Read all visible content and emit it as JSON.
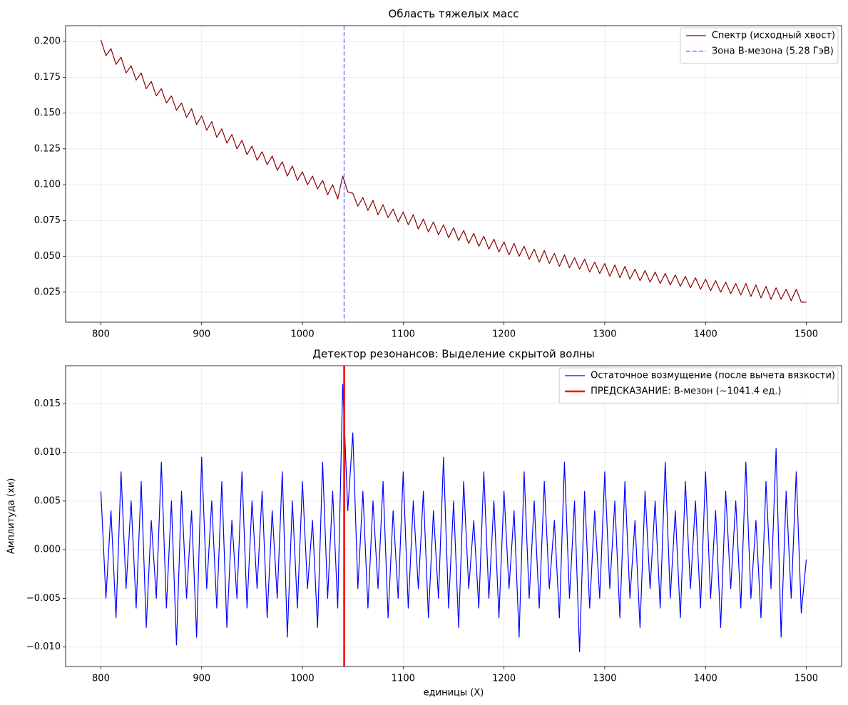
{
  "chart_data": [
    {
      "type": "line",
      "title": "Область тяжелых масс",
      "x": [
        800,
        805,
        810,
        815,
        820,
        825,
        830,
        835,
        840,
        845,
        850,
        855,
        860,
        865,
        870,
        875,
        880,
        885,
        890,
        895,
        900,
        905,
        910,
        915,
        920,
        925,
        930,
        935,
        940,
        945,
        950,
        955,
        960,
        965,
        970,
        975,
        980,
        985,
        990,
        995,
        1000,
        1005,
        1010,
        1015,
        1020,
        1025,
        1030,
        1035,
        1040,
        1045,
        1050,
        1055,
        1060,
        1065,
        1070,
        1075,
        1080,
        1085,
        1090,
        1095,
        1100,
        1105,
        1110,
        1115,
        1120,
        1125,
        1130,
        1135,
        1140,
        1145,
        1150,
        1155,
        1160,
        1165,
        1170,
        1175,
        1180,
        1185,
        1190,
        1195,
        1200,
        1205,
        1210,
        1215,
        1220,
        1225,
        1230,
        1235,
        1240,
        1245,
        1250,
        1255,
        1260,
        1265,
        1270,
        1275,
        1280,
        1285,
        1290,
        1295,
        1300,
        1305,
        1310,
        1315,
        1320,
        1325,
        1330,
        1335,
        1340,
        1345,
        1350,
        1355,
        1360,
        1365,
        1370,
        1375,
        1380,
        1385,
        1390,
        1395,
        1400,
        1405,
        1410,
        1415,
        1420,
        1425,
        1430,
        1435,
        1440,
        1445,
        1450,
        1455,
        1460,
        1465,
        1470,
        1475,
        1480,
        1485,
        1490,
        1495,
        1500
      ],
      "series": [
        {
          "name": "Спектр (исходный хвост)",
          "color": "#8b0000",
          "values": [
            0.201,
            0.19,
            0.195,
            0.184,
            0.189,
            0.178,
            0.183,
            0.173,
            0.178,
            0.167,
            0.172,
            0.162,
            0.167,
            0.157,
            0.162,
            0.152,
            0.157,
            0.147,
            0.153,
            0.142,
            0.148,
            0.138,
            0.144,
            0.133,
            0.139,
            0.129,
            0.135,
            0.125,
            0.131,
            0.121,
            0.127,
            0.117,
            0.123,
            0.114,
            0.12,
            0.11,
            0.116,
            0.106,
            0.113,
            0.103,
            0.109,
            0.1,
            0.106,
            0.097,
            0.103,
            0.093,
            0.1,
            0.09,
            0.106,
            0.095,
            0.094,
            0.085,
            0.091,
            0.082,
            0.089,
            0.079,
            0.086,
            0.077,
            0.083,
            0.074,
            0.081,
            0.072,
            0.079,
            0.069,
            0.076,
            0.067,
            0.074,
            0.065,
            0.072,
            0.063,
            0.07,
            0.061,
            0.068,
            0.059,
            0.066,
            0.057,
            0.064,
            0.055,
            0.062,
            0.053,
            0.06,
            0.051,
            0.059,
            0.05,
            0.057,
            0.048,
            0.055,
            0.046,
            0.054,
            0.045,
            0.052,
            0.043,
            0.051,
            0.042,
            0.049,
            0.041,
            0.048,
            0.039,
            0.046,
            0.038,
            0.045,
            0.036,
            0.044,
            0.035,
            0.043,
            0.034,
            0.041,
            0.033,
            0.04,
            0.032,
            0.039,
            0.031,
            0.038,
            0.03,
            0.037,
            0.029,
            0.036,
            0.028,
            0.035,
            0.027,
            0.034,
            0.026,
            0.033,
            0.025,
            0.032,
            0.024,
            0.031,
            0.023,
            0.031,
            0.022,
            0.03,
            0.021,
            0.029,
            0.02,
            0.028,
            0.02,
            0.027,
            0.019,
            0.027,
            0.018,
            0.018
          ]
        }
      ],
      "vline": {
        "x": 1041.4,
        "name": "Зона B-мезона (5.28 ГэВ)",
        "color": "#0000ff",
        "opacity": 0.5,
        "style": "dashed",
        "width": 1.5
      },
      "xlim": [
        765,
        1535
      ],
      "ylim": [
        0.004,
        0.211
      ],
      "xticks": [
        800,
        900,
        1000,
        1100,
        1200,
        1300,
        1400,
        1500
      ],
      "yticks": [
        0.025,
        {
          "value": 0.05,
          "label": "0.050"
        },
        0.075,
        {
          "value": 0.1,
          "label": "0.100"
        },
        0.125,
        {
          "value": 0.15,
          "label": "0.150"
        },
        0.175,
        {
          "value": 0.2,
          "label": "0.200"
        }
      ],
      "grid": true,
      "legend": "upper right"
    },
    {
      "type": "line",
      "title": "Детектор резонансов: Выделение скрытой волны",
      "xlabel": "единицы (X)",
      "ylabel": "Амплитуда (хи)",
      "x": [
        800,
        805,
        810,
        815,
        820,
        825,
        830,
        835,
        840,
        845,
        850,
        855,
        860,
        865,
        870,
        875,
        880,
        885,
        890,
        895,
        900,
        905,
        910,
        915,
        920,
        925,
        930,
        935,
        940,
        945,
        950,
        955,
        960,
        965,
        970,
        975,
        980,
        985,
        990,
        995,
        1000,
        1005,
        1010,
        1015,
        1020,
        1025,
        1030,
        1035,
        1040,
        1045,
        1050,
        1055,
        1060,
        1065,
        1070,
        1075,
        1080,
        1085,
        1090,
        1095,
        1100,
        1105,
        1110,
        1115,
        1120,
        1125,
        1130,
        1135,
        1140,
        1145,
        1150,
        1155,
        1160,
        1165,
        1170,
        1175,
        1180,
        1185,
        1190,
        1195,
        1200,
        1205,
        1210,
        1215,
        1220,
        1225,
        1230,
        1235,
        1240,
        1245,
        1250,
        1255,
        1260,
        1265,
        1270,
        1275,
        1280,
        1285,
        1290,
        1295,
        1300,
        1305,
        1310,
        1315,
        1320,
        1325,
        1330,
        1335,
        1340,
        1345,
        1350,
        1355,
        1360,
        1365,
        1370,
        1375,
        1380,
        1385,
        1390,
        1395,
        1400,
        1405,
        1410,
        1415,
        1420,
        1425,
        1430,
        1435,
        1440,
        1445,
        1450,
        1455,
        1460,
        1465,
        1470,
        1475,
        1480,
        1485,
        1490,
        1495,
        1500
      ],
      "series": [
        {
          "name": "Остаточное возмущение (после вычета вязкости)",
          "color": "#0000ff",
          "values": [
            0.006,
            -0.005,
            0.004,
            -0.007,
            0.008,
            -0.004,
            0.005,
            -0.006,
            0.007,
            -0.008,
            0.003,
            -0.005,
            0.009,
            -0.006,
            0.005,
            -0.0098,
            0.006,
            -0.005,
            0.004,
            -0.009,
            0.0095,
            -0.004,
            0.005,
            -0.006,
            0.007,
            -0.008,
            0.003,
            -0.005,
            0.008,
            -0.006,
            0.005,
            -0.004,
            0.006,
            -0.007,
            0.004,
            -0.005,
            0.008,
            -0.009,
            0.005,
            -0.006,
            0.007,
            -0.004,
            0.003,
            -0.008,
            0.009,
            -0.005,
            0.006,
            -0.006,
            0.017,
            0.004,
            0.012,
            -0.004,
            0.006,
            -0.006,
            0.005,
            -0.004,
            0.007,
            -0.007,
            0.004,
            -0.005,
            0.008,
            -0.006,
            0.005,
            -0.004,
            0.006,
            -0.007,
            0.004,
            -0.005,
            0.0095,
            -0.006,
            0.005,
            -0.008,
            0.007,
            -0.004,
            0.003,
            -0.006,
            0.008,
            -0.005,
            0.005,
            -0.007,
            0.006,
            -0.004,
            0.004,
            -0.009,
            0.008,
            -0.005,
            0.005,
            -0.006,
            0.007,
            -0.004,
            0.003,
            -0.007,
            0.009,
            -0.005,
            0.005,
            -0.0105,
            0.006,
            -0.006,
            0.004,
            -0.005,
            0.008,
            -0.004,
            0.005,
            -0.007,
            0.007,
            -0.005,
            0.003,
            -0.008,
            0.006,
            -0.004,
            0.005,
            -0.006,
            0.009,
            -0.005,
            0.004,
            -0.007,
            0.007,
            -0.004,
            0.005,
            -0.006,
            0.008,
            -0.005,
            0.004,
            -0.008,
            0.006,
            -0.004,
            0.005,
            -0.006,
            0.009,
            -0.005,
            0.003,
            -0.007,
            0.007,
            -0.004,
            0.0104,
            -0.009,
            0.006,
            -0.005,
            0.008,
            -0.0065,
            -0.001
          ]
        }
      ],
      "vline": {
        "x": 1041.4,
        "name": "ПРЕДСКАЗАНИЕ: B-мезон (~1041.4 ед.)",
        "color": "#ff0000",
        "opacity": 1,
        "style": "solid",
        "width": 2.5
      },
      "xlim": [
        765,
        1535
      ],
      "ylim": [
        -0.012,
        0.0189
      ],
      "xticks": [
        800,
        900,
        1000,
        1100,
        1200,
        1300,
        1400,
        1500
      ],
      "yticks": [
        {
          "value": -0.01,
          "label": "−0.010"
        },
        {
          "value": -0.005,
          "label": "−0.005"
        },
        {
          "value": 0,
          "label": "0.000"
        },
        0.005,
        {
          "value": 0.01,
          "label": "0.010"
        },
        0.015
      ],
      "grid": true,
      "legend": "upper right"
    }
  ]
}
